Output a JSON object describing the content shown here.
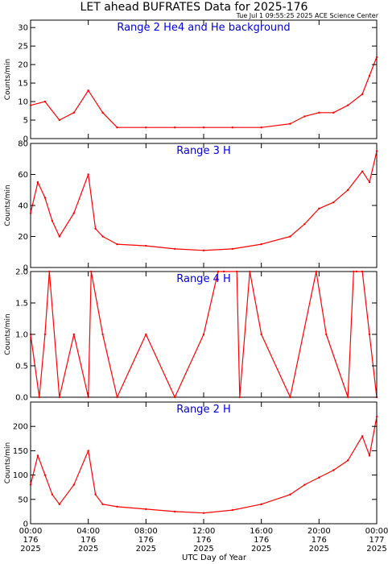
{
  "title": "LET ahead BUFRATES Data for 2025-176",
  "timestamp": "Tue Jul  1 09:55:25 2025 ACE Science Center",
  "xlabel": "UTC Day of Year",
  "colors": {
    "series": "#ff0000",
    "panel_label": "#0000dd",
    "axes": "#000000"
  },
  "chart_data": [
    {
      "type": "line",
      "panel": "Range 2 He4 and He background",
      "ylabel": "Counts/min",
      "ylim": [
        0,
        32
      ],
      "yticks": [
        0,
        5,
        10,
        15,
        20,
        25,
        30
      ],
      "x_hours": [
        0,
        1,
        2,
        3,
        4,
        5,
        6,
        8,
        10,
        12,
        14,
        16,
        18,
        19,
        20,
        21,
        22,
        23,
        23.5,
        24
      ],
      "series": [
        {
          "values": [
            9,
            10,
            5,
            7,
            13,
            7,
            3,
            3,
            3,
            3,
            3,
            3,
            4,
            6,
            7,
            7,
            9,
            12,
            17,
            22
          ]
        }
      ]
    },
    {
      "type": "line",
      "panel": "Range 3 H",
      "ylabel": "Counts/min",
      "ylim": [
        0,
        80
      ],
      "yticks": [
        0,
        20,
        40,
        60,
        80
      ],
      "x_hours": [
        0,
        0.5,
        1,
        1.5,
        2,
        3,
        4,
        4.5,
        5,
        6,
        8,
        10,
        12,
        14,
        16,
        18,
        19,
        20,
        21,
        22,
        23,
        23.5,
        24
      ],
      "series": [
        {
          "values": [
            35,
            55,
            45,
            30,
            20,
            35,
            60,
            25,
            20,
            15,
            14,
            12,
            11,
            12,
            15,
            20,
            28,
            38,
            42,
            50,
            62,
            55,
            75
          ]
        }
      ]
    },
    {
      "type": "line",
      "panel": "Range 4 H",
      "ylabel": "Counts/min",
      "ylim": [
        0,
        2.0
      ],
      "yticks": [
        0.0,
        0.5,
        1.0,
        1.5,
        2.0
      ],
      "x_hours": [
        0,
        0.6,
        1.0,
        1.3,
        2.0,
        3.0,
        4.0,
        4.2,
        5.0,
        6.0,
        8.0,
        10.0,
        12.0,
        13.0,
        13.4,
        14.3,
        14.5,
        15.2,
        16.0,
        18.0,
        19.8,
        20.5,
        22.0,
        22.4,
        22.6,
        23.0,
        23.5,
        24.0
      ],
      "series": [
        {
          "values": [
            1,
            0,
            1,
            2,
            0,
            1,
            0,
            2,
            1,
            0,
            1,
            0,
            1,
            2,
            2,
            2,
            0,
            2,
            1,
            0,
            2,
            1,
            0,
            2,
            2,
            2,
            1,
            0
          ]
        }
      ]
    },
    {
      "type": "line",
      "panel": "Range 2 H",
      "ylabel": "Counts/min",
      "ylim": [
        0,
        250
      ],
      "yticks": [
        0,
        50,
        100,
        150,
        200
      ],
      "x_hours": [
        0,
        0.5,
        1,
        1.5,
        2,
        3,
        4,
        4.5,
        5,
        6,
        8,
        10,
        12,
        14,
        16,
        18,
        19,
        20,
        21,
        22,
        23,
        23.5,
        24
      ],
      "series": [
        {
          "values": [
            80,
            140,
            100,
            60,
            40,
            80,
            150,
            60,
            40,
            35,
            30,
            25,
            22,
            28,
            40,
            60,
            80,
            95,
            110,
            130,
            180,
            140,
            220
          ]
        }
      ]
    }
  ],
  "x_axis": {
    "range_hours": [
      0,
      24
    ],
    "ticks": [
      {
        "hour": 0,
        "time": "00:00",
        "doy": "176",
        "year": "2025"
      },
      {
        "hour": 4,
        "time": "04:00",
        "doy": "176",
        "year": "2025"
      },
      {
        "hour": 8,
        "time": "08:00",
        "doy": "176",
        "year": "2025"
      },
      {
        "hour": 12,
        "time": "12:00",
        "doy": "176",
        "year": "2025"
      },
      {
        "hour": 16,
        "time": "16:00",
        "doy": "176",
        "year": "2025"
      },
      {
        "hour": 20,
        "time": "20:00",
        "doy": "176",
        "year": "2025"
      },
      {
        "hour": 24,
        "time": "00:00",
        "doy": "177",
        "year": "2025"
      }
    ]
  }
}
